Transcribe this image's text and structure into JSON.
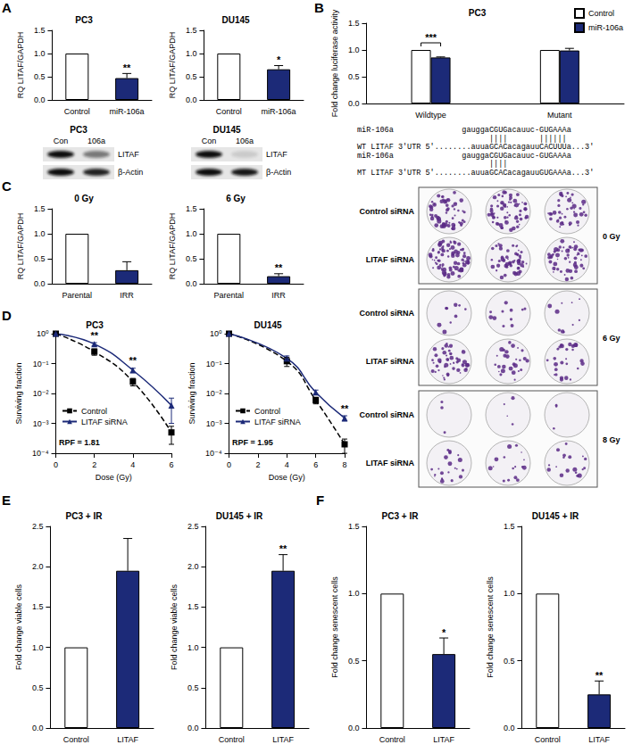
{
  "panel_labels": [
    "A",
    "B",
    "C",
    "D",
    "E",
    "F"
  ],
  "chart_data": [
    {
      "type": "bar",
      "title": "PC3",
      "y_label": "RQ LITAF/GAPDH",
      "categories": [
        "Control",
        "miR-106a"
      ],
      "values": [
        1,
        0.47
      ],
      "errors": [
        0,
        0.1
      ],
      "colors": [
        "#ffffff",
        "#1c2a78"
      ],
      "ylim": [
        0,
        1.5
      ],
      "yticks": [
        {
          "value": 0,
          "label": "0.0"
        },
        {
          "value": 0.5,
          "label": "0.5"
        },
        {
          "value": 1,
          "label": "1.0"
        },
        {
          "value": 1.5,
          "label": "1.5"
        }
      ],
      "grid": false,
      "annotations": [
        {
          "category": "miR-106a",
          "text": "**"
        }
      ]
    },
    {
      "type": "bar",
      "title": "DU145",
      "y_label": "RQ LITAF/GAPDH",
      "categories": [
        "Control",
        "miR-106a"
      ],
      "values": [
        1,
        0.66
      ],
      "errors": [
        0,
        0.08
      ],
      "colors": [
        "#ffffff",
        "#1c2a78"
      ],
      "ylim": [
        0,
        1.5
      ],
      "yticks": [
        {
          "value": 0,
          "label": "0.0"
        },
        {
          "value": 0.5,
          "label": "0.5"
        },
        {
          "value": 1,
          "label": "1.0"
        },
        {
          "value": 1.5,
          "label": "1.5"
        }
      ],
      "grid": false,
      "annotations": [
        {
          "category": "miR-106a",
          "text": "*"
        }
      ]
    },
    {
      "type": "bar",
      "title": "PC3",
      "y_label": "Fold change luciferase activity",
      "categories": [
        "Wildtype",
        "Mutant"
      ],
      "series": [
        {
          "name": "Control",
          "color": "#ffffff",
          "values": [
            1,
            1
          ],
          "errors": [
            0,
            0
          ]
        },
        {
          "name": "miR-106a",
          "color": "#1c2a78",
          "values": [
            0.86,
            0.99
          ],
          "errors": [
            0.01,
            0.04
          ]
        }
      ],
      "ylim": [
        0,
        1.5
      ],
      "yticks": [
        {
          "value": 0,
          "label": "0.0"
        },
        {
          "value": 0.5,
          "label": "0.5"
        },
        {
          "value": 1,
          "label": "1.0"
        },
        {
          "value": 1.5,
          "label": "1.5"
        }
      ],
      "grid": false,
      "legend": "top-right",
      "annotations": [
        {
          "category": "Wildtype",
          "text": "***"
        }
      ]
    },
    {
      "type": "bar",
      "title": "0 Gy",
      "y_label": "RQ LITAF/GAPDH",
      "categories": [
        "Parental",
        "IRR"
      ],
      "values": [
        1,
        0.27
      ],
      "errors": [
        0,
        0.17
      ],
      "colors": [
        "#ffffff",
        "#1c2a78"
      ],
      "ylim": [
        0,
        1.5
      ],
      "yticks": [
        {
          "value": 0,
          "label": "0.0"
        },
        {
          "value": 0.5,
          "label": "0.5"
        },
        {
          "value": 1,
          "label": "1.0"
        },
        {
          "value": 1.5,
          "label": "1.5"
        }
      ],
      "grid": false
    },
    {
      "type": "bar",
      "title": "6 Gy",
      "y_label": "RQ LITAF/GAPDH",
      "categories": [
        "Parental",
        "IRR"
      ],
      "values": [
        1,
        0.15
      ],
      "errors": [
        0,
        0.05
      ],
      "colors": [
        "#ffffff",
        "#1c2a78"
      ],
      "ylim": [
        0,
        1.5
      ],
      "yticks": [
        {
          "value": 0,
          "label": "0.0"
        },
        {
          "value": 0.5,
          "label": "0.5"
        },
        {
          "value": 1,
          "label": "1.0"
        },
        {
          "value": 1.5,
          "label": "1.5"
        }
      ],
      "grid": false,
      "annotations": [
        {
          "category": "IRR",
          "text": "**"
        }
      ]
    },
    {
      "type": "line",
      "title": "PC3",
      "x_label": "Dose (Gy)",
      "y_label": "Surviving fraction",
      "log": "y",
      "x": [
        0,
        2,
        4,
        6
      ],
      "xlim": [
        0,
        6
      ],
      "xticks": [
        0,
        2,
        4,
        6
      ],
      "ylim": [
        0.0001,
        1
      ],
      "yticks": [
        {
          "value": 0.0001,
          "label": "10⁻⁴"
        },
        {
          "value": 0.001,
          "label": "10⁻³"
        },
        {
          "value": 0.01,
          "label": "10⁻²"
        },
        {
          "value": 0.1,
          "label": "10⁻¹"
        },
        {
          "value": 1,
          "label": "10⁰"
        }
      ],
      "grid": false,
      "legend": "bottom-left",
      "series": [
        {
          "name": "Control",
          "color": "#000000",
          "marker": "square",
          "line_style": "dashed",
          "values": [
            1,
            0.25,
            0.025,
            0.0005
          ],
          "errors": [
            0,
            0.06,
            0.007,
            0.0003
          ]
        },
        {
          "name": "LITAF siRNA",
          "color": "#1c2a78",
          "marker": "triangle",
          "line_style": "solid",
          "values": [
            1,
            0.45,
            0.06,
            0.004
          ],
          "errors": [
            0,
            0.05,
            0.01,
            0.003
          ]
        }
      ],
      "annotations": [
        {
          "x": 2,
          "text": "**"
        },
        {
          "x": 4,
          "text": "**"
        },
        {
          "text": "RPF = 1.81"
        }
      ]
    },
    {
      "type": "line",
      "title": "DU145",
      "x_label": "Dose (Gy)",
      "y_label": "Surviving fraction",
      "log": "y",
      "x": [
        0,
        4,
        6,
        8
      ],
      "xlim": [
        0,
        8
      ],
      "xticks": [
        0,
        2,
        4,
        6,
        8
      ],
      "ylim": [
        0.0001,
        1
      ],
      "yticks": [
        {
          "value": 0.0001,
          "label": "10⁻⁴"
        },
        {
          "value": 0.001,
          "label": "10⁻³"
        },
        {
          "value": 0.01,
          "label": "10⁻²"
        },
        {
          "value": 0.1,
          "label": "10⁻¹"
        },
        {
          "value": 1,
          "label": "10⁰"
        }
      ],
      "grid": false,
      "legend": "bottom-left",
      "series": [
        {
          "name": "Control",
          "color": "#000000",
          "marker": "square",
          "line_style": "dashed",
          "values": [
            1,
            0.12,
            0.006,
            0.0002
          ],
          "errors": [
            0,
            0.04,
            0.0015,
            0.0001
          ]
        },
        {
          "name": "LITAF siRNA",
          "color": "#1c2a78",
          "marker": "triangle",
          "line_style": "solid",
          "values": [
            1,
            0.15,
            0.011,
            0.0015
          ],
          "errors": [
            0,
            0.03,
            0.002,
            0.0003
          ]
        }
      ],
      "annotations": [
        {
          "x": 8,
          "text": "**"
        },
        {
          "text": "RPF = 1.95"
        }
      ]
    },
    {
      "type": "bar",
      "title": "PC3 + IR",
      "y_label": "Fold change viable cells",
      "categories": [
        "Control",
        "LITAF"
      ],
      "values": [
        1,
        1.95
      ],
      "errors": [
        0,
        0.4
      ],
      "colors": [
        "#ffffff",
        "#1c2a78"
      ],
      "ylim": [
        0,
        2.5
      ],
      "yticks": [
        {
          "value": 0,
          "label": "0.0"
        },
        {
          "value": 0.5,
          "label": "0.5"
        },
        {
          "value": 1,
          "label": "1.0"
        },
        {
          "value": 1.5,
          "label": "1.5"
        },
        {
          "value": 2,
          "label": "2.0"
        },
        {
          "value": 2.5,
          "label": "2.5"
        }
      ],
      "grid": false
    },
    {
      "type": "bar",
      "title": "DU145 + IR",
      "y_label": "Fold change viable cells",
      "categories": [
        "Control",
        "LITAF"
      ],
      "values": [
        1,
        1.95
      ],
      "errors": [
        0,
        0.2
      ],
      "colors": [
        "#ffffff",
        "#1c2a78"
      ],
      "ylim": [
        0,
        2.5
      ],
      "yticks": [
        {
          "value": 0,
          "label": "0.0"
        },
        {
          "value": 0.5,
          "label": "0.5"
        },
        {
          "value": 1,
          "label": "1.0"
        },
        {
          "value": 1.5,
          "label": "1.5"
        },
        {
          "value": 2,
          "label": "2.0"
        },
        {
          "value": 2.5,
          "label": "2.5"
        }
      ],
      "grid": false,
      "annotations": [
        {
          "category": "LITAF",
          "text": "**"
        }
      ]
    },
    {
      "type": "bar",
      "title": "PC3 + IR",
      "y_label": "Fold change senescent cells",
      "categories": [
        "Control",
        "LITAF"
      ],
      "values": [
        1,
        0.55
      ],
      "errors": [
        0,
        0.12
      ],
      "colors": [
        "#ffffff",
        "#1c2a78"
      ],
      "ylim": [
        0,
        1.5
      ],
      "yticks": [
        {
          "value": 0,
          "label": "0.0"
        },
        {
          "value": 0.5,
          "label": "0.5"
        },
        {
          "value": 1,
          "label": "1.0"
        },
        {
          "value": 1.5,
          "label": "1.5"
        }
      ],
      "grid": false,
      "annotations": [
        {
          "category": "LITAF",
          "text": "*"
        }
      ]
    },
    {
      "type": "bar",
      "title": "DU145 + IR",
      "y_label": "Fold change senescent cells",
      "categories": [
        "Control",
        "LITAF"
      ],
      "values": [
        1,
        0.25
      ],
      "errors": [
        0,
        0.1
      ],
      "colors": [
        "#ffffff",
        "#1c2a78"
      ],
      "ylim": [
        0,
        1.5
      ],
      "yticks": [
        {
          "value": 0,
          "label": "0.0"
        },
        {
          "value": 0.5,
          "label": "0.5"
        },
        {
          "value": 1,
          "label": "1.0"
        },
        {
          "value": 1.5,
          "label": "1.5"
        }
      ],
      "grid": false,
      "annotations": [
        {
          "category": "LITAF",
          "text": "**"
        }
      ]
    }
  ],
  "western_blots": [
    {
      "title": "PC3",
      "lanes": [
        "Con",
        "106a"
      ],
      "rows": [
        "LITAF",
        "β-Actin"
      ]
    },
    {
      "title": "DU145",
      "lanes": [
        "Con",
        "106a"
      ],
      "rows": [
        "LITAF",
        "β-Actin"
      ]
    }
  ],
  "sequence": {
    "lines": [
      "miR-106a               gauggaCGUGacauuc-GUGAAAa",
      "                             ||||       ||||||",
      "WT LITAF 3'UTR 5'........auuaGCACacagauuCACUUUa...3'",
      "miR-106a               gauggaCGUGacauuc-GUGAAAa",
      "                             ||||",
      "MT LITAF 3'UTR 5'........auuaGCACacagauuGUGAAAa...3'"
    ]
  },
  "colony_assay": {
    "rows": [
      "Control siRNA",
      "LITAF siRNA"
    ],
    "doses": [
      "0 Gy",
      "6 Gy",
      "8 Gy"
    ]
  }
}
